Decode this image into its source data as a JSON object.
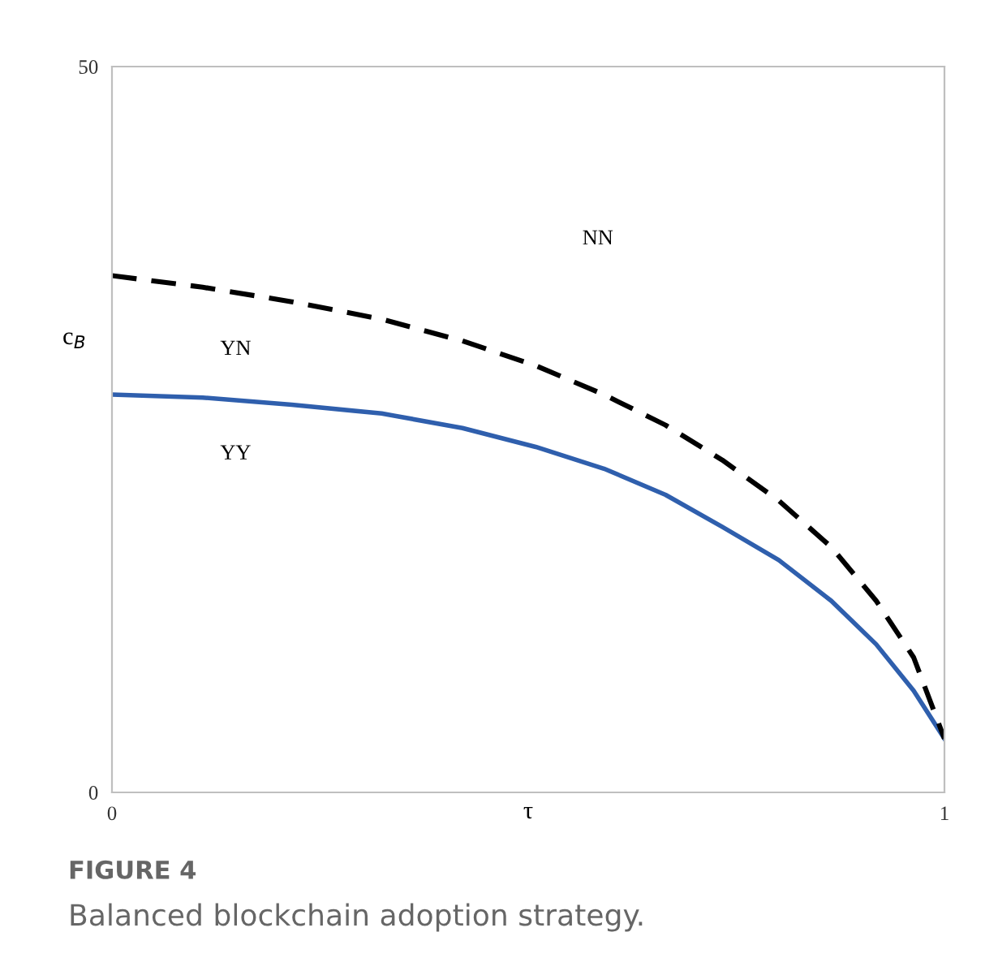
{
  "chart_data": {
    "type": "line",
    "xlabel": "τ",
    "ylabel": "c$_{B}$",
    "xlim": [
      0,
      1
    ],
    "ylim": [
      0,
      50
    ],
    "xticks": [
      0,
      1
    ],
    "yticks": [
      0,
      50
    ],
    "grid": false,
    "legend": false,
    "marker": "none",
    "x": [
      0,
      0.109,
      0.216,
      0.324,
      0.421,
      0.509,
      0.591,
      0.665,
      0.733,
      0.801,
      0.864,
      0.918,
      0.963,
      1
    ],
    "series": [
      {
        "color": "#2f5fad",
        "line_style": "solid",
        "values": [
          27.4,
          27.2,
          26.7,
          26.1,
          25.1,
          23.8,
          22.3,
          20.5,
          18.3,
          16.0,
          13.2,
          10.2,
          7.0,
          3.7
        ]
      },
      {
        "color": "#000000",
        "line_style": "dashed",
        "values": [
          35.6,
          34.8,
          33.8,
          32.6,
          31.1,
          29.4,
          27.4,
          25.3,
          22.9,
          20.1,
          16.9,
          13.2,
          9.3,
          3.7
        ]
      }
    ],
    "annotations": [
      "NN",
      "YN",
      "YY",
      "FIGURE 4",
      "Balanced blockchain adoption strategy."
    ]
  }
}
